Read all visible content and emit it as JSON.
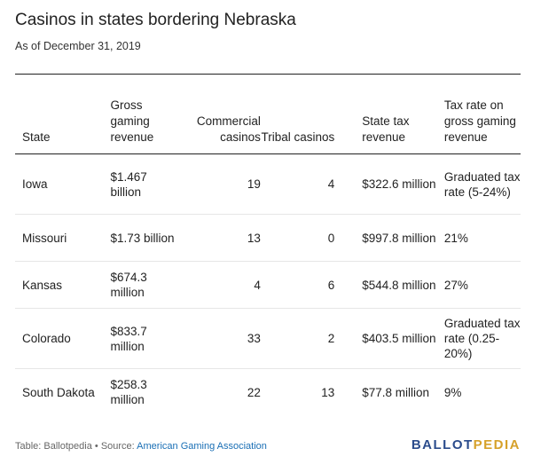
{
  "title": "Casinos in states bordering Nebraska",
  "subtitle": "As of December 31, 2019",
  "table": {
    "headers": {
      "state": "State",
      "ggr": "Gross gaming revenue",
      "commercial": "Commercial casinos",
      "tribal": "Tribal casinos",
      "tax": "State tax revenue",
      "rate": "Tax rate on gross gaming revenue"
    },
    "rows": [
      {
        "state": "Iowa",
        "ggr": "$1.467 billion",
        "commercial": "19",
        "tribal": "4",
        "tax": "$322.6 million",
        "rate": "Graduated tax rate (5-24%)"
      },
      {
        "state": "Missouri",
        "ggr": "$1.73 billion",
        "commercial": "13",
        "tribal": "0",
        "tax": "$997.8 million",
        "rate": "21%"
      },
      {
        "state": "Kansas",
        "ggr": "$674.3 million",
        "commercial": "4",
        "tribal": "6",
        "tax": "$544.8 million",
        "rate": "27%"
      },
      {
        "state": "Colorado",
        "ggr": "$833.7 million",
        "commercial": "33",
        "tribal": "2",
        "tax": "$403.5 million",
        "rate": "Graduated tax rate (0.25-20%)"
      },
      {
        "state": "South Dakota",
        "ggr": "$258.3 million",
        "commercial": "22",
        "tribal": "13",
        "tax": "$77.8 million",
        "rate": "9%"
      }
    ]
  },
  "footer": {
    "table_credit": "Table: Ballotpedia",
    "separator": " • ",
    "source_label": "Source: ",
    "source_link": "American Gaming Association"
  },
  "logo": {
    "part1": "BALLOT",
    "part2": "PEDIA"
  },
  "colors": {
    "link": "#1a6fb5",
    "logo_primary": "#2b4c8c",
    "logo_accent": "#d6a12a",
    "row_divider": "#e6e6e6"
  }
}
